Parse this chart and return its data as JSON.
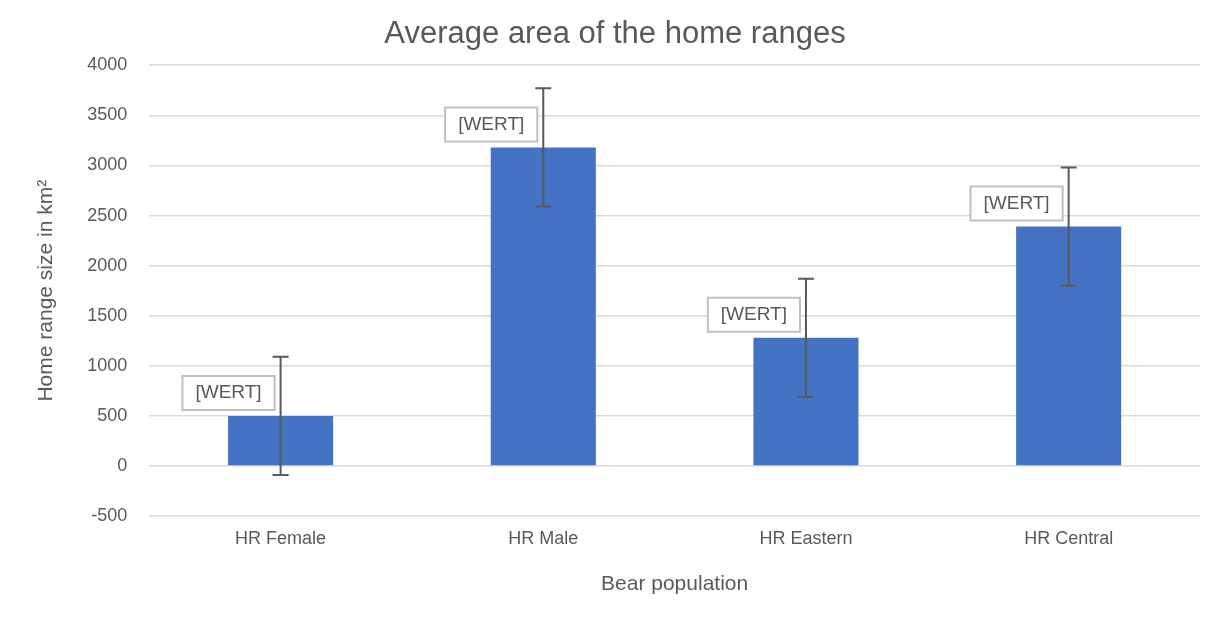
{
  "chart_data": {
    "type": "bar",
    "title": "Average area of the home ranges",
    "xlabel": "Bear population",
    "ylabel": "Home range size in km²",
    "categories": [
      "HR Female",
      "HR Male",
      "HR Eastern",
      "HR Central"
    ],
    "values": [
      500,
      3180,
      1280,
      2390
    ],
    "errors": [
      590,
      590,
      590,
      590
    ],
    "value_labels": [
      "[WERT]",
      "[WERT]",
      "[WERT]",
      "[WERT]"
    ],
    "color": "#4472c4",
    "ylim": [
      -500,
      4000
    ],
    "yticks": [
      -500,
      0,
      500,
      1000,
      1500,
      2000,
      2500,
      3000,
      3500,
      4000
    ],
    "grid": "y",
    "legend": false
  }
}
